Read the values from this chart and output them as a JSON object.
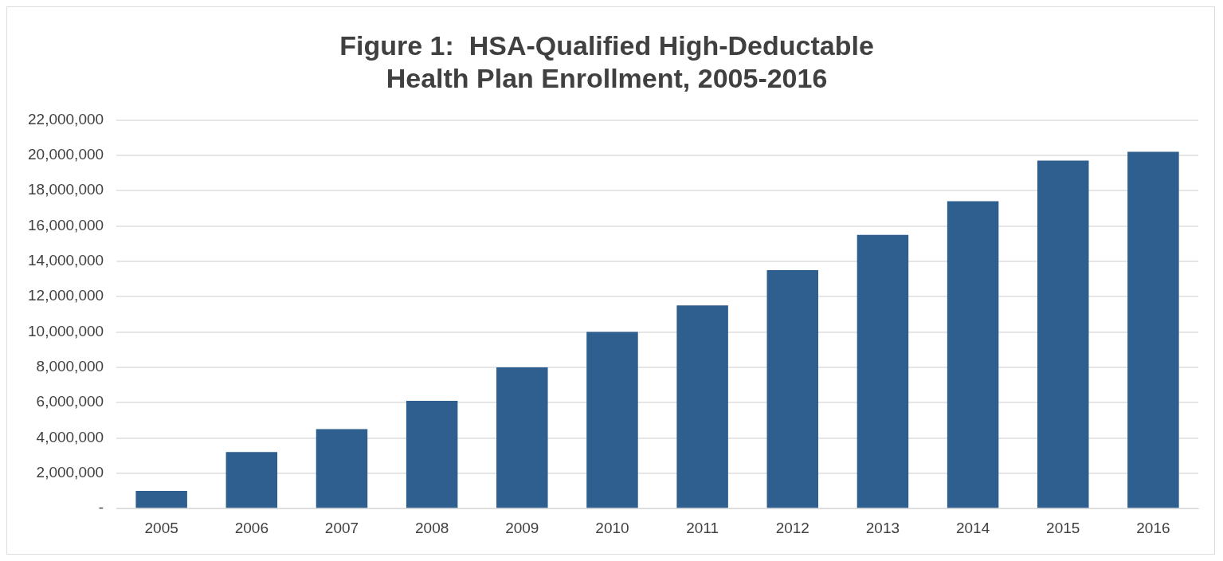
{
  "chart_data": {
    "type": "bar",
    "title": "Figure 1:  HSA-Qualified High-Deductable\nHealth Plan Enrollment, 2005-2016",
    "categories": [
      "2005",
      "2006",
      "2007",
      "2008",
      "2009",
      "2010",
      "2011",
      "2012",
      "2013",
      "2014",
      "2015",
      "2016"
    ],
    "values": [
      1000000,
      3200000,
      4500000,
      6100000,
      8000000,
      10000000,
      11500000,
      13500000,
      15500000,
      17400000,
      19700000,
      20200000
    ],
    "color": "#2e5f8e",
    "ylim": [
      0,
      22000000
    ],
    "yticks": [
      {
        "value": 0,
        "label": "-"
      },
      {
        "value": 2000000,
        "label": "2,000,000"
      },
      {
        "value": 4000000,
        "label": "4,000,000"
      },
      {
        "value": 6000000,
        "label": "6,000,000"
      },
      {
        "value": 8000000,
        "label": "8,000,000"
      },
      {
        "value": 10000000,
        "label": "10,000,000"
      },
      {
        "value": 12000000,
        "label": "12,000,000"
      },
      {
        "value": 14000000,
        "label": "14,000,000"
      },
      {
        "value": 16000000,
        "label": "16,000,000"
      },
      {
        "value": 18000000,
        "label": "18,000,000"
      },
      {
        "value": 20000000,
        "label": "20,000,000"
      },
      {
        "value": 22000000,
        "label": "22,000,000"
      }
    ],
    "grid": "y"
  }
}
